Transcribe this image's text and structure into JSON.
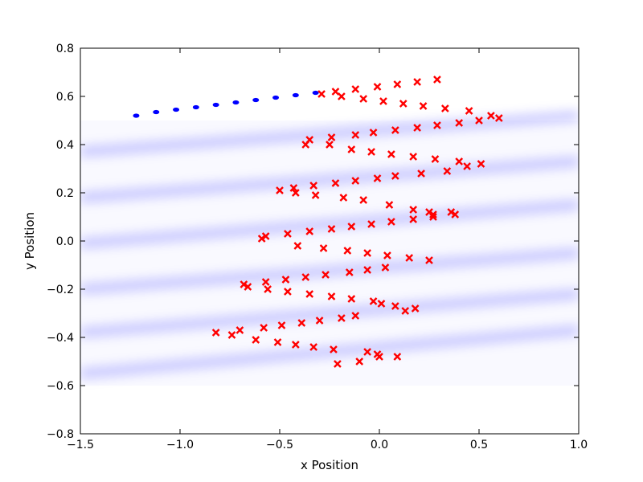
{
  "chart_data": {
    "type": "scatter",
    "title": "",
    "xlabel": "x Position",
    "ylabel": "y Position",
    "xlim": [
      -1.5,
      1.0
    ],
    "ylim": [
      -0.8,
      0.8
    ],
    "xticks": [
      -1.5,
      -1.0,
      -0.5,
      0.0,
      0.5,
      1.0
    ],
    "yticks": [
      -0.8,
      -0.6,
      -0.4,
      -0.2,
      0.0,
      0.2,
      0.4,
      0.6,
      0.8
    ],
    "xtick_labels": [
      "−1.5",
      "−1.0",
      "−0.5",
      "0.0",
      "0.5",
      "1.0"
    ],
    "ytick_labels": [
      "−0.8",
      "−0.6",
      "−0.4",
      "−0.2",
      "0.0",
      "0.2",
      "0.4",
      "0.6",
      "0.8"
    ],
    "grid": false,
    "colors": {
      "density": "#0000ff",
      "track": "#0000ff",
      "markers": "#ff0000"
    },
    "density_bands": [
      {
        "x": [
          -1.5,
          1.0
        ],
        "y": [
          0.37,
          0.52
        ]
      },
      {
        "x": [
          -1.5,
          1.0
        ],
        "y": [
          0.18,
          0.33
        ]
      },
      {
        "x": [
          -1.5,
          1.0
        ],
        "y": [
          -0.01,
          0.15
        ]
      },
      {
        "x": [
          -1.5,
          1.0
        ],
        "y": [
          -0.2,
          -0.05
        ]
      },
      {
        "x": [
          -1.5,
          1.0
        ],
        "y": [
          -0.38,
          -0.22
        ]
      },
      {
        "x": [
          -1.5,
          1.0
        ],
        "y": [
          -0.55,
          -0.37
        ]
      }
    ],
    "track": {
      "x": [
        -1.22,
        -1.12,
        -1.02,
        -0.92,
        -0.82,
        -0.72,
        -0.62,
        -0.52,
        -0.42,
        -0.32
      ],
      "y": [
        0.52,
        0.535,
        0.545,
        0.555,
        0.565,
        0.575,
        0.585,
        0.595,
        0.605,
        0.615
      ]
    },
    "series": [
      {
        "marker": "x",
        "x": [
          -0.29,
          -0.22,
          -0.19,
          -0.12,
          -0.08,
          -0.01,
          0.02,
          0.09,
          0.12,
          0.19,
          0.22,
          0.29,
          0.33,
          0.4,
          0.45,
          0.5,
          0.56,
          0.6,
          -0.37,
          -0.35,
          -0.25,
          -0.24,
          -0.14,
          -0.12,
          -0.04,
          -0.03,
          0.06,
          0.08,
          0.17,
          0.19,
          0.28,
          0.29,
          0.34,
          0.4,
          0.44,
          0.51,
          -0.5,
          -0.43,
          -0.42,
          -0.33,
          -0.32,
          -0.22,
          -0.18,
          -0.12,
          -0.08,
          -0.01,
          0.05,
          0.08,
          0.17,
          0.21,
          0.25,
          0.27,
          0.36,
          0.38,
          -0.59,
          -0.57,
          -0.46,
          -0.41,
          -0.35,
          -0.28,
          -0.24,
          -0.16,
          -0.14,
          -0.06,
          -0.04,
          0.04,
          0.06,
          0.15,
          0.17,
          0.25,
          0.27,
          -0.68,
          -0.66,
          -0.57,
          -0.56,
          -0.47,
          -0.46,
          -0.37,
          -0.35,
          -0.27,
          -0.24,
          -0.15,
          -0.14,
          -0.06,
          -0.03,
          0.01,
          0.03,
          0.08,
          0.13,
          0.18,
          -0.82,
          -0.74,
          -0.7,
          -0.62,
          -0.58,
          -0.51,
          -0.49,
          -0.42,
          -0.39,
          -0.33,
          -0.3,
          -0.23,
          -0.19,
          -0.12,
          -0.01,
          -0.06,
          0.0,
          0.09,
          -0.21,
          -0.1
        ],
        "y": [
          0.61,
          0.62,
          0.6,
          0.63,
          0.59,
          0.64,
          0.58,
          0.65,
          0.57,
          0.66,
          0.56,
          0.67,
          0.55,
          0.49,
          0.54,
          0.5,
          0.52,
          0.51,
          0.4,
          0.42,
          0.4,
          0.43,
          0.38,
          0.44,
          0.37,
          0.45,
          0.36,
          0.46,
          0.35,
          0.47,
          0.34,
          0.48,
          0.29,
          0.33,
          0.31,
          0.32,
          0.21,
          0.22,
          0.2,
          0.23,
          0.19,
          0.24,
          0.18,
          0.25,
          0.17,
          0.26,
          0.15,
          0.27,
          0.13,
          0.28,
          0.12,
          0.11,
          0.12,
          0.11,
          0.01,
          0.02,
          0.03,
          -0.02,
          0.04,
          -0.03,
          0.05,
          -0.04,
          0.06,
          -0.05,
          0.07,
          -0.06,
          0.08,
          -0.07,
          0.09,
          -0.08,
          0.1,
          -0.18,
          -0.19,
          -0.17,
          -0.2,
          -0.16,
          -0.21,
          -0.15,
          -0.22,
          -0.14,
          -0.23,
          -0.13,
          -0.24,
          -0.12,
          -0.25,
          -0.26,
          -0.11,
          -0.27,
          -0.29,
          -0.28,
          -0.38,
          -0.39,
          -0.37,
          -0.41,
          -0.36,
          -0.42,
          -0.35,
          -0.43,
          -0.34,
          -0.44,
          -0.33,
          -0.45,
          -0.32,
          -0.31,
          -0.47,
          -0.46,
          -0.48,
          -0.48,
          -0.51,
          -0.5
        ]
      }
    ]
  }
}
